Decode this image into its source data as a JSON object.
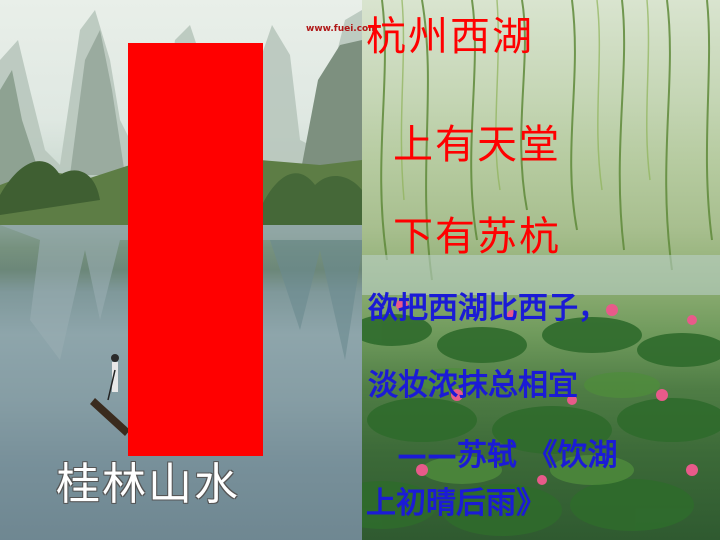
{
  "watermark": "www.fuei.com",
  "poem": {
    "title": "杭州西湖",
    "line1": "上有天堂",
    "line2": "下有苏杭",
    "verse1": "欲把西湖比西子，",
    "verse2": "淡妆浓抹总相宜",
    "attribution_line1": "——苏轼 《饮湖",
    "attribution_line2": "上初晴后雨》"
  },
  "caption": "桂林山水",
  "colors": {
    "title_red": "#ff0000",
    "verse_blue": "#1b1bd6",
    "caption_white": "#ffffff",
    "block_red": "#ff0000"
  }
}
